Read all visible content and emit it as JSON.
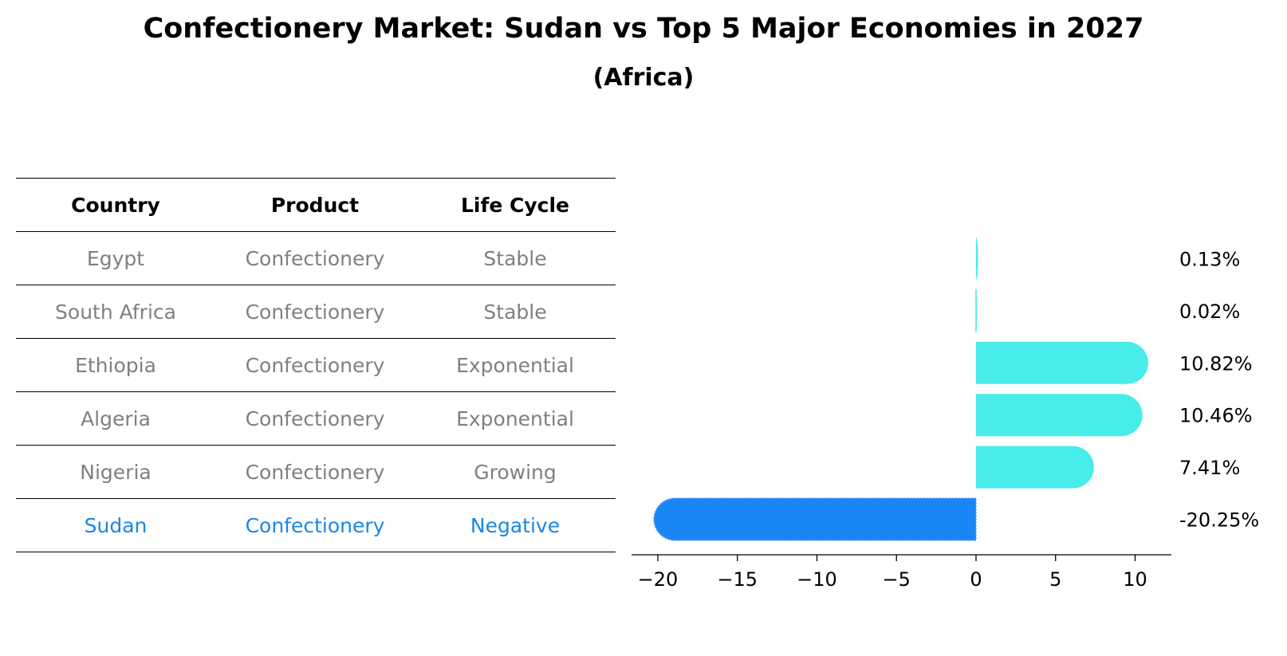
{
  "title": "Confectionery Market: Sudan vs Top 5 Major Economies in 2027",
  "subtitle": "(Africa)",
  "table": {
    "headers": [
      "Country",
      "Product",
      "Life Cycle"
    ],
    "rows": [
      [
        "Egypt",
        "Confectionery",
        "Stable"
      ],
      [
        "South Africa",
        "Confectionery",
        "Stable"
      ],
      [
        "Ethiopia",
        "Confectionery",
        "Exponential"
      ],
      [
        "Algeria",
        "Confectionery",
        "Exponential"
      ],
      [
        "Nigeria",
        "Confectionery",
        "Growing"
      ],
      [
        "Sudan",
        "Confectionery",
        "Negative"
      ]
    ],
    "highlight_row": 5
  },
  "chart_data": {
    "type": "bar",
    "orientation": "horizontal",
    "categories": [
      "Egypt",
      "South Africa",
      "Ethiopia",
      "Algeria",
      "Nigeria",
      "Sudan"
    ],
    "values": [
      0.13,
      0.02,
      10.82,
      10.46,
      7.41,
      -20.25
    ],
    "value_labels": [
      "0.13%",
      "0.02%",
      "10.82%",
      "10.46%",
      "7.41%",
      "-20.25%"
    ],
    "xlim": [
      -22,
      12.5
    ],
    "xticks": [
      -20,
      -15,
      -10,
      -5,
      0,
      5,
      10
    ],
    "xtick_labels": [
      "−20",
      "−15",
      "−10",
      "−5",
      "0",
      "5",
      "10"
    ],
    "colors": {
      "positive": "#48ece8",
      "highlight": "#1a86f5",
      "axis": "#000000",
      "text_muted": "#808080",
      "text_highlight": "#1a86e8"
    }
  }
}
